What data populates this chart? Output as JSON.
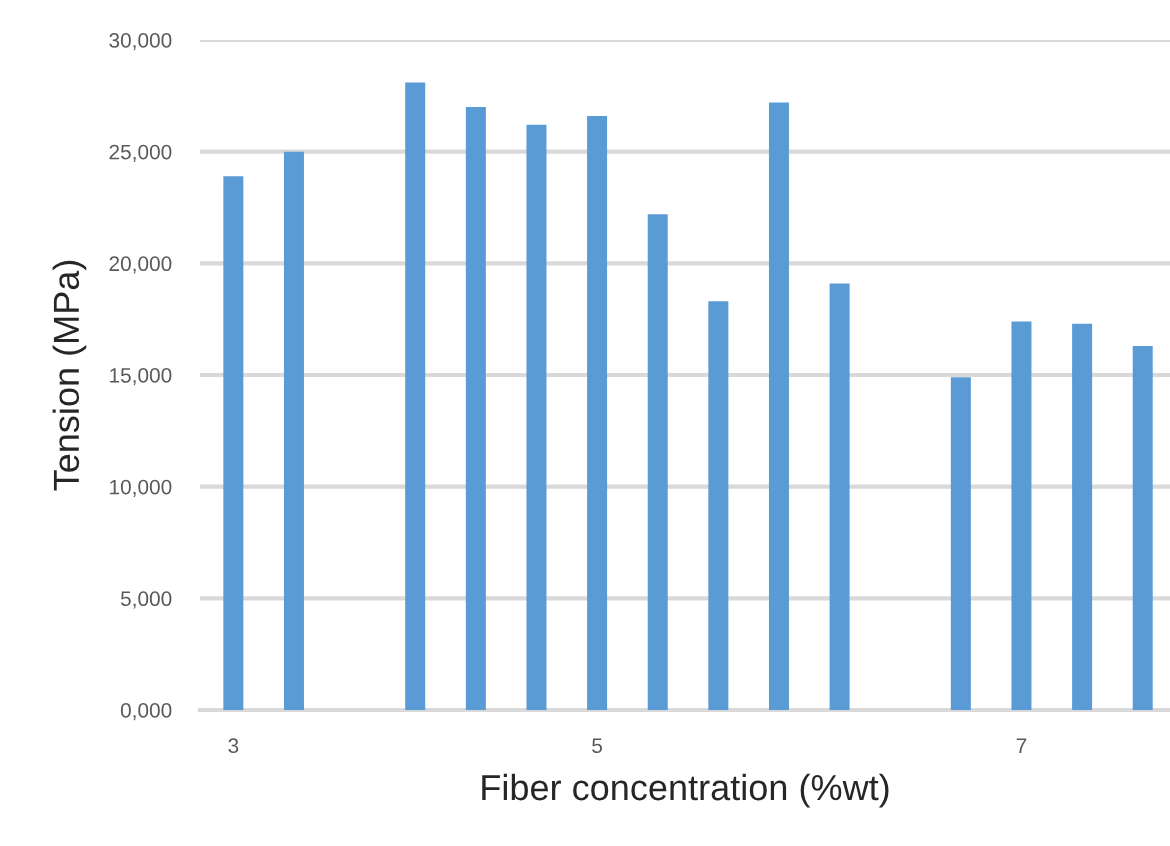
{
  "chart_data": {
    "type": "bar",
    "xlabel": "Fiber concentration (%wt)",
    "ylabel": "Tension (MPa)",
    "categories": [
      "3",
      null,
      null,
      null,
      null,
      null,
      "5",
      null,
      null,
      null,
      null,
      null,
      null,
      "7",
      null,
      null
    ],
    "values": [
      23900,
      25000,
      null,
      28100,
      27000,
      26200,
      26600,
      22200,
      18300,
      27200,
      19100,
      null,
      14900,
      17400,
      17300,
      16300
    ],
    "color": "#5b9bd5",
    "ylim": [
      0,
      30000
    ],
    "yticks": [
      {
        "value": 0,
        "label": "0,000"
      },
      {
        "value": 5000,
        "label": "5,000"
      },
      {
        "value": 10000,
        "label": "10,000"
      },
      {
        "value": 15000,
        "label": "15,000"
      },
      {
        "value": 20000,
        "label": "20,000"
      },
      {
        "value": 25000,
        "label": "25,000"
      },
      {
        "value": 30000,
        "label": "30,000"
      }
    ],
    "grid": "y",
    "legend": false
  }
}
